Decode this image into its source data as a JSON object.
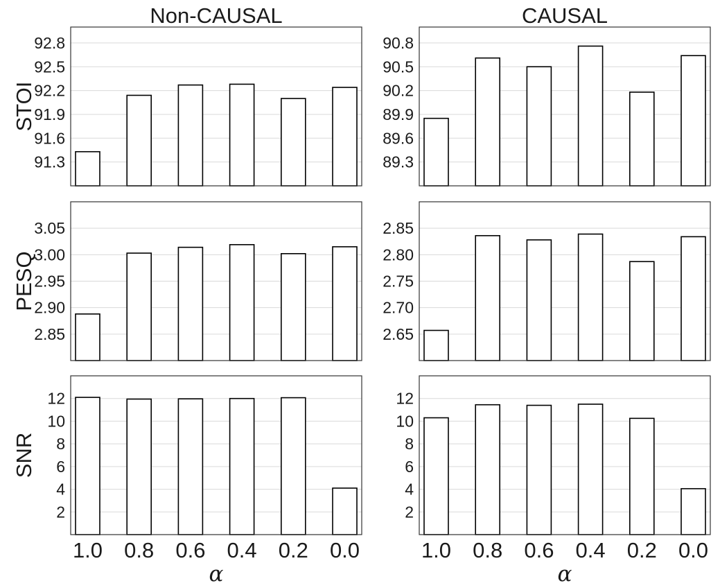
{
  "columns": [
    {
      "title": "Non-CAUSAL",
      "xlabel": "α"
    },
    {
      "title": "CAUSAL",
      "xlabel": "α"
    }
  ],
  "chart_data": [
    {
      "type": "bar",
      "col": 0,
      "row": 0,
      "ylabel": "STOI",
      "xlabel": "",
      "categories": [
        "1.0",
        "0.8",
        "0.6",
        "0.4",
        "0.2",
        "0.0"
      ],
      "values": [
        91.43,
        92.14,
        92.27,
        92.28,
        92.1,
        92.24
      ],
      "ylim": [
        91.0,
        93.0
      ],
      "yticks": [
        91.3,
        91.6,
        91.9,
        92.2,
        92.5,
        92.8
      ],
      "ytick_labels": [
        "91.3",
        "91.6",
        "91.9",
        "92.2",
        "92.5",
        "92.8"
      ]
    },
    {
      "type": "bar",
      "col": 1,
      "row": 0,
      "ylabel": "",
      "xlabel": "",
      "categories": [
        "1.0",
        "0.8",
        "0.6",
        "0.4",
        "0.2",
        "0.0"
      ],
      "values": [
        89.85,
        90.61,
        90.5,
        90.76,
        90.18,
        90.64
      ],
      "ylim": [
        89.0,
        91.0
      ],
      "yticks": [
        89.3,
        89.6,
        89.9,
        90.2,
        90.5,
        90.8
      ],
      "ytick_labels": [
        "89.3",
        "89.6",
        "89.9",
        "90.2",
        "90.5",
        "90.8"
      ]
    },
    {
      "type": "bar",
      "col": 0,
      "row": 1,
      "ylabel": "PESQ",
      "xlabel": "",
      "categories": [
        "1.0",
        "0.8",
        "0.6",
        "0.4",
        "0.2",
        "0.0"
      ],
      "values": [
        2.888,
        3.003,
        3.014,
        3.019,
        3.002,
        3.015
      ],
      "ylim": [
        2.8,
        3.1
      ],
      "yticks": [
        2.85,
        2.9,
        2.95,
        3.0,
        3.05
      ],
      "ytick_labels": [
        "2.85",
        "2.90",
        "2.95",
        "3.00",
        "3.05"
      ]
    },
    {
      "type": "bar",
      "col": 1,
      "row": 1,
      "ylabel": "",
      "xlabel": "",
      "categories": [
        "1.0",
        "0.8",
        "0.6",
        "0.4",
        "0.2",
        "0.0"
      ],
      "values": [
        2.657,
        2.836,
        2.828,
        2.839,
        2.787,
        2.834
      ],
      "ylim": [
        2.6,
        2.9
      ],
      "yticks": [
        2.65,
        2.7,
        2.75,
        2.8,
        2.85
      ],
      "ytick_labels": [
        "2.65",
        "2.70",
        "2.75",
        "2.80",
        "2.85"
      ]
    },
    {
      "type": "bar",
      "col": 0,
      "row": 2,
      "ylabel": "SNR",
      "xlabel": "",
      "categories": [
        "1.0",
        "0.8",
        "0.6",
        "0.4",
        "0.2",
        "0.0"
      ],
      "values": [
        12.1,
        11.95,
        11.97,
        12.0,
        12.07,
        4.1
      ],
      "ylim": [
        0,
        14
      ],
      "yticks": [
        2,
        4,
        6,
        8,
        10,
        12
      ],
      "ytick_labels": [
        "2",
        "4",
        "6",
        "8",
        "10",
        "12"
      ]
    },
    {
      "type": "bar",
      "col": 1,
      "row": 2,
      "ylabel": "",
      "xlabel": "",
      "categories": [
        "1.0",
        "0.8",
        "0.6",
        "0.4",
        "0.2",
        "0.0"
      ],
      "values": [
        10.3,
        11.45,
        11.4,
        11.5,
        10.25,
        4.05
      ],
      "ylim": [
        0,
        14
      ],
      "yticks": [
        2,
        4,
        6,
        8,
        10,
        12
      ],
      "ytick_labels": [
        "2",
        "4",
        "6",
        "8",
        "10",
        "12"
      ]
    }
  ]
}
